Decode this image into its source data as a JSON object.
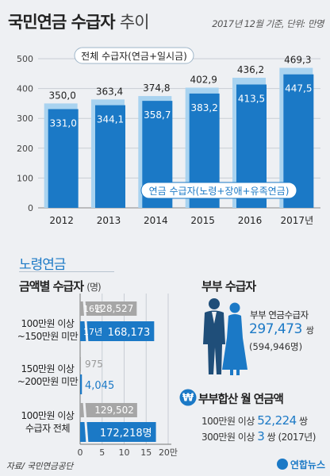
{
  "header": {
    "title_main": "국민연금 수급자",
    "title_sub": "추이",
    "note": "2017년 12월 기준, 단위: 만명"
  },
  "chart_data": [
    {
      "type": "bar",
      "categories": [
        "2012",
        "2013",
        "2014",
        "2015",
        "2016",
        "2017년"
      ],
      "series": [
        {
          "name": "전체 수급자(연금+일시금)",
          "values": [
            350.0,
            363.4,
            374.8,
            402.9,
            436.2,
            469.3
          ],
          "labels": [
            "350,0",
            "363,4",
            "374,8",
            "402,9",
            "436,2",
            "469,3"
          ],
          "color": "#a9d3f0"
        },
        {
          "name": "연금 수급자(노령+장애+유족연금)",
          "values": [
            331.0,
            344.1,
            358.7,
            383.2,
            413.5,
            447.5
          ],
          "labels": [
            "331,0",
            "344,1",
            "358,7",
            "383,2",
            "413,5",
            "447,5"
          ],
          "color": "#1b79c6"
        }
      ],
      "yticks": [
        0,
        100,
        200,
        300,
        400,
        500
      ],
      "ylim": [
        0,
        500
      ]
    },
    {
      "type": "bar",
      "orientation": "horizontal",
      "title": "금액별 수급자",
      "unit": "(명)",
      "categories": [
        [
          "100만원 이상",
          "~150만원 미만"
        ],
        [
          "150만원 이상",
          "~200만원 미만"
        ],
        [
          "100만원 이상",
          "수급자 전체"
        ]
      ],
      "series": [
        {
          "name": "16년",
          "values": [
            128527,
            975,
            129502
          ],
          "labels": [
            "128,527",
            "975",
            "129,502"
          ],
          "color": "#a6a6a6"
        },
        {
          "name": "17년",
          "values": [
            168173,
            4045,
            172218
          ],
          "labels": [
            "168,173",
            "4,045",
            "172,218명"
          ],
          "color": "#1b79c6"
        }
      ],
      "xticks": [
        "0",
        "5",
        "10",
        "15",
        "20만"
      ],
      "xlim": [
        0,
        200000
      ],
      "axis_break": true
    }
  ],
  "section2": {
    "title": "노령연금"
  },
  "couple": {
    "title": "부부 수급자",
    "label": "부부 연금수급자",
    "value": "297,473",
    "unit": "쌍",
    "prev": "(594,946명)"
  },
  "monthly": {
    "title": "부부합산 월 연금액",
    "line1_prefix": "100만원 이상",
    "line1_value": "52,224",
    "line1_unit": "쌍",
    "line2_prefix": "300만원 이상",
    "line2_value": "3",
    "line2_unit": "쌍 (2017년)"
  },
  "footer": {
    "source": "자료/ 국민연금공단",
    "brand": "연합뉴스"
  }
}
